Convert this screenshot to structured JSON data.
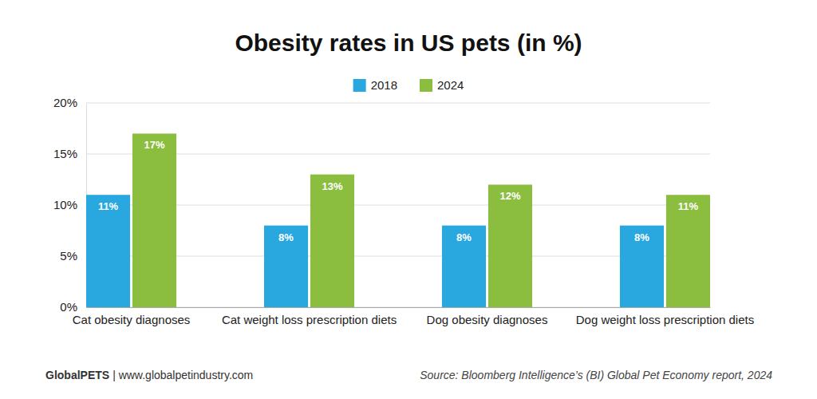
{
  "chart_data": {
    "type": "bar",
    "title": "Obesity rates in US pets (in %)",
    "categories": [
      "Cat obesity diagnoses",
      "Cat weight loss prescription diets",
      "Dog obesity diagnoses",
      "Dog weight loss prescription diets"
    ],
    "series": [
      {
        "name": "2018",
        "color": "#29a8df",
        "values": [
          11,
          8,
          8,
          8
        ],
        "value_labels": [
          "11%",
          "8%",
          "8%",
          "8%"
        ]
      },
      {
        "name": "2024",
        "color": "#8bbd3f",
        "values": [
          17,
          13,
          12,
          11
        ],
        "value_labels": [
          "17%",
          "13%",
          "12%",
          "11%"
        ]
      }
    ],
    "ylim": [
      0,
      20
    ],
    "yticks": [
      {
        "value": 0,
        "label": "0%"
      },
      {
        "value": 5,
        "label": "5%"
      },
      {
        "value": 10,
        "label": "10%"
      },
      {
        "value": 15,
        "label": "15%"
      },
      {
        "value": 20,
        "label": "20%"
      }
    ],
    "grid": true,
    "legend": "top",
    "data_labels": true,
    "brand": "GlobalPETS",
    "website": "| www.globalpetindustry.com",
    "source": "Source: Bloomberg Intelligence’s (BI) Global Pet Economy report, 2024"
  }
}
